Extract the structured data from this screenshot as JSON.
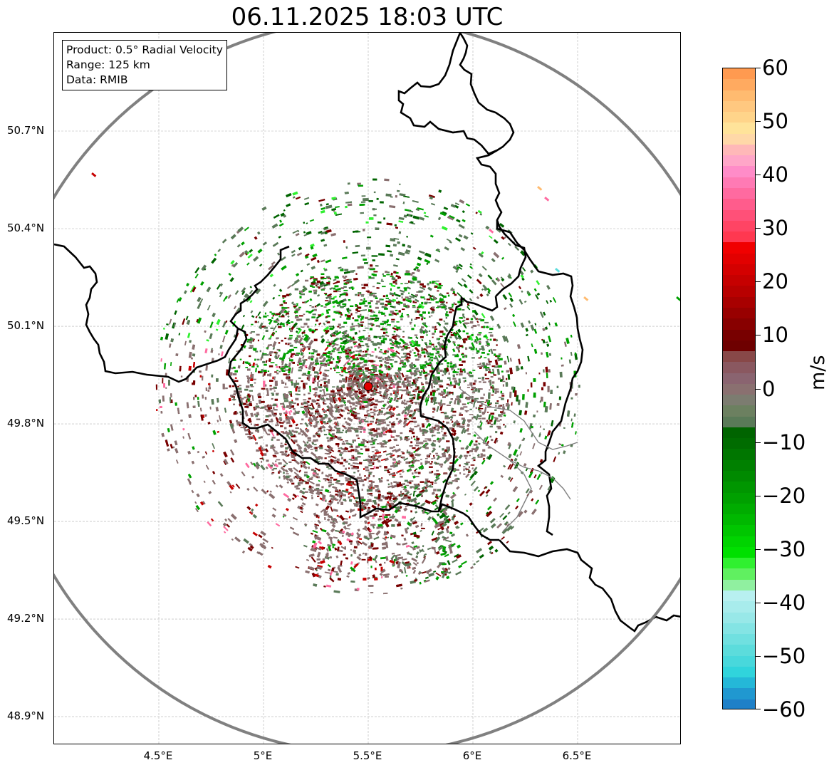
{
  "title": "06.11.2025 18:03 UTC",
  "info_box": {
    "product": "Product: 0.5° Radial Velocity",
    "range": "Range: 125 km",
    "data": "Data: RMIB"
  },
  "map": {
    "lat_ticks": [
      "50.7°N",
      "50.4°N",
      "50.1°N",
      "49.8°N",
      "49.5°N",
      "49.2°N",
      "48.9°N"
    ],
    "lat_values": [
      50.7,
      50.4,
      50.1,
      49.8,
      49.5,
      49.2,
      48.9
    ],
    "lon_ticks": [
      "4.5°E",
      "5°E",
      "5.5°E",
      "6°E",
      "6.5°E"
    ],
    "lon_values": [
      4.5,
      5.0,
      5.5,
      6.0,
      6.5
    ],
    "lon_range": [
      4.0,
      7.0
    ],
    "lat_range": [
      48.8,
      51.0
    ],
    "radar_site": {
      "lon": 5.5,
      "lat": 49.915
    },
    "range_ring_km": 125,
    "range_ring_color": "#808080",
    "radar_marker_color": "#e00000",
    "border_color": "#000000",
    "region_border_color": "#808080"
  },
  "colorbar": {
    "unit": "m/s",
    "vmin": -60,
    "vmax": 60,
    "tick_labels": [
      "60",
      "50",
      "40",
      "30",
      "20",
      "10",
      "0",
      "−10",
      "−20",
      "−30",
      "−40",
      "−50",
      "−60"
    ],
    "tick_values": [
      60,
      50,
      40,
      30,
      20,
      10,
      0,
      -10,
      -20,
      -30,
      -40,
      -50,
      -60
    ],
    "colors_top_to_bottom": [
      "#ff9a50",
      "#ffaa60",
      "#ffbb70",
      "#ffc880",
      "#ffd48a",
      "#ffe39a",
      "#ffd8a8",
      "#ffb8b8",
      "#ffa6c8",
      "#ff8cc8",
      "#ff7ab4",
      "#ff6aa0",
      "#ff5c8c",
      "#ff5078",
      "#ff4464",
      "#ff3850",
      "#f00000",
      "#e20000",
      "#d40000",
      "#c60000",
      "#b80000",
      "#a80000",
      "#980000",
      "#880000",
      "#780000",
      "#6e0000",
      "#884848",
      "#8a5860",
      "#8a6470",
      "#8a7070",
      "#7c7c70",
      "#6c8060",
      "#5a7a58",
      "#006400",
      "#006c00",
      "#007600",
      "#008000",
      "#008a00",
      "#009600",
      "#00a000",
      "#00ac00",
      "#00b800",
      "#00c600",
      "#00d400",
      "#00e000",
      "#30f030",
      "#60f060",
      "#90f0a0",
      "#b8f0f0",
      "#a8ecec",
      "#98e8e8",
      "#84e4e4",
      "#70e0e0",
      "#5cdcdc",
      "#48d8dc",
      "#30d4dc",
      "#24b8d8",
      "#2098d0",
      "#1e80c8"
    ]
  },
  "velocity_palette": {
    "gray": "#8a7070",
    "green_gray": "#5a7a58",
    "dark_green": "#006400",
    "green": "#00a000",
    "light_green": "#30f030",
    "dark_red": "#780000",
    "red": "#c60000",
    "pink": "#ff6aa0",
    "orange": "#ffbb70",
    "cyan": "#5cdcdc"
  }
}
